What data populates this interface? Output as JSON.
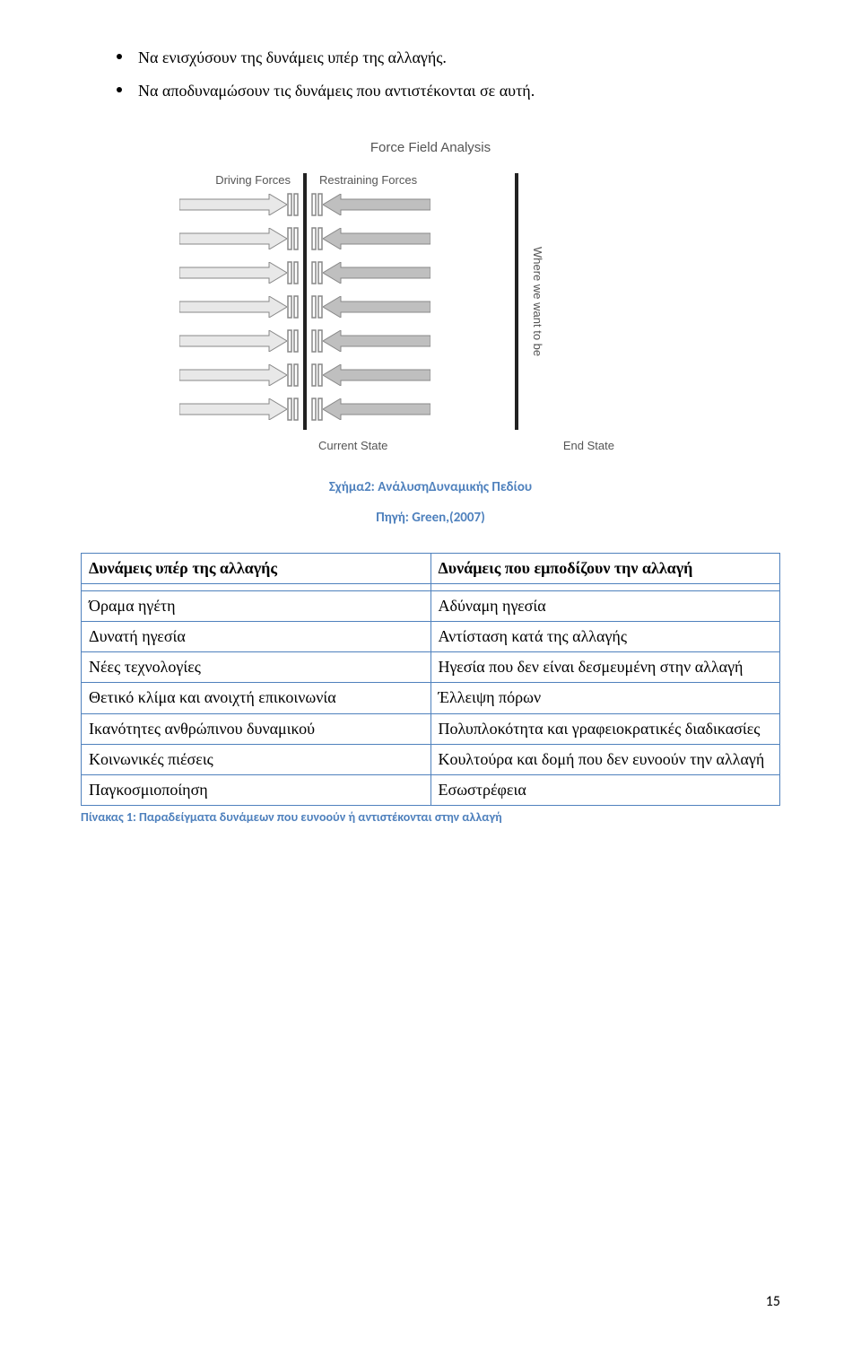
{
  "bullets": [
    "Να ενισχύσουν της δυνάμεις υπέρ της αλλαγής.",
    "Να αποδυναμώσουν τις δυνάμεις που αντιστέκονται σε αυτή."
  ],
  "diagram": {
    "title": "Force Field Analysis",
    "driving_label": "Driving Forces",
    "restraining_label": "Restraining Forces",
    "current_label": "Current State",
    "end_label": "End State",
    "vtext": "Where we want to be",
    "num_rows": 7,
    "arrow_fill_left": "#e8e8e8",
    "arrow_fill_right": "#bfbfbf",
    "arrow_stroke": "#888888",
    "bar_color": "#222222",
    "bracket_stroke": "#888888"
  },
  "fig_caption": "Σχήμα2: ΑνάλυσηΔυναμικής Πεδίου",
  "fig_source": "Πηγή: Green,(2007)",
  "fig_caption_color": "#4f81bd",
  "fig_source_color": "#4f81bd",
  "table": {
    "border_color": "#4f81bd",
    "header": [
      "Δυνάμεις υπέρ της αλλαγής",
      "Δυνάμεις που εμποδίζουν την αλλαγή"
    ],
    "rows": [
      [
        "Όραμα ηγέτη",
        "Αδύναμη ηγεσία"
      ],
      [
        "Δυνατή ηγεσία",
        "Αντίσταση κατά της αλλαγής"
      ],
      [
        "Νέες τεχνολογίες",
        "Ηγεσία που δεν είναι δεσμευμένη στην αλλαγή"
      ],
      [
        "Θετικό κλίμα και ανοιχτή επικοινωνία",
        "Έλλειψη πόρων"
      ],
      [
        "Ικανότητες ανθρώπινου δυναμικού",
        "Πολυπλοκότητα και γραφειοκρατικές διαδικασίες"
      ],
      [
        "Κοινωνικές πιέσεις",
        "Κουλτούρα και δομή που δεν ευνοούν την αλλαγή"
      ],
      [
        "Παγκοσμιοποίηση",
        "Εσωστρέφεια"
      ]
    ]
  },
  "table_caption": "Πίνακας 1: Παραδείγματα δυνάμεων που ευνοούν ή αντιστέκονται στην αλλαγή",
  "table_caption_color": "#4f81bd",
  "page_number": "15"
}
